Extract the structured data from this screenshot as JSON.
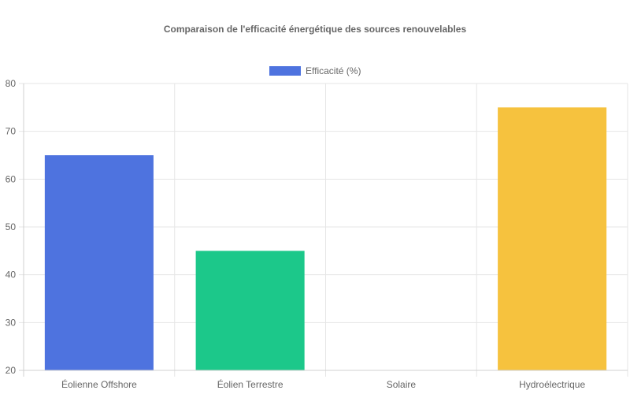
{
  "chart_data": {
    "type": "bar",
    "title": "Comparaison de l'efficacité énergétique des sources renouvelables",
    "categories": [
      "Éolienne Offshore",
      "Éolien Terrestre",
      "Solaire",
      "Hydroélectrique"
    ],
    "series": [
      {
        "name": "Efficacité (%)",
        "values": [
          65,
          45,
          20,
          75
        ],
        "colors": [
          "#4e73df",
          "#1cc88a",
          "#36b9cc",
          "#f6c23e"
        ]
      }
    ],
    "ylim": [
      20,
      80
    ],
    "yticks": [
      20,
      30,
      40,
      50,
      60,
      70,
      80
    ],
    "grid": true,
    "legend_position": "top",
    "legend_color": "#4e73df"
  }
}
